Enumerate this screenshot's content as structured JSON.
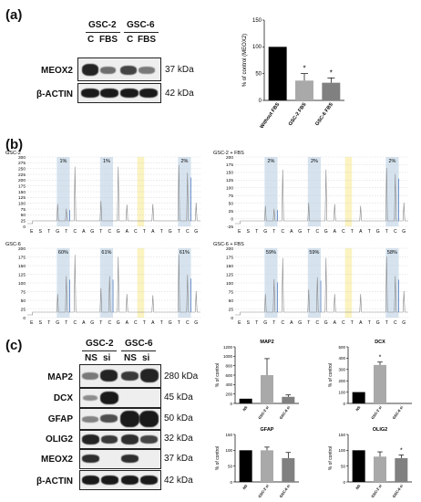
{
  "panel_a": {
    "label": "(a)",
    "groups": [
      "GSC-2",
      "GSC-6"
    ],
    "lanes": [
      "C",
      "FBS",
      "C",
      "FBS"
    ],
    "rows": [
      {
        "name": "MEOX2",
        "kda": "37 kDa"
      },
      {
        "name": "β-ACTIN",
        "kda": "42 kDa"
      }
    ]
  },
  "panel_b": {
    "label": "(b)",
    "sequence": [
      "E",
      "S",
      "T",
      "G",
      "T",
      "C",
      "A",
      "G",
      "T",
      "C",
      "G",
      "A",
      "C",
      "T",
      "A",
      "T",
      "G",
      "T",
      "C",
      "G"
    ],
    "plots": [
      {
        "title": "GSC-2",
        "percents": [
          "1%",
          "1%",
          "2%"
        ],
        "yticks": [
          "300",
          "275",
          "250",
          "225",
          "200",
          "175",
          "150",
          "125",
          "100",
          "75",
          "50",
          "25",
          "0"
        ]
      },
      {
        "title": "GSC-2 + FBS",
        "percents": [
          "2%",
          "2%",
          "2%"
        ],
        "yticks": [
          "200",
          "175",
          "150",
          "125",
          "100",
          "75",
          "50",
          "25",
          "0",
          "-25"
        ]
      },
      {
        "title": "GSC-6",
        "percents": [
          "60%",
          "61%",
          "61%"
        ],
        "yticks": [
          "200",
          "175",
          "150",
          "125",
          "100",
          "75",
          "50",
          "25",
          "0"
        ]
      },
      {
        "title": "GSC-6 + FBS",
        "percents": [
          "59%",
          "59%",
          "58%"
        ],
        "yticks": [
          "200",
          "175",
          "150",
          "125",
          "100",
          "75",
          "50",
          "25",
          "0"
        ]
      }
    ]
  },
  "panel_c": {
    "label": "(c)",
    "groups": [
      "GSC-2",
      "GSC-6"
    ],
    "lanes": [
      "NS",
      "si",
      "NS",
      "si"
    ],
    "rows": [
      {
        "name": "MAP2",
        "kda": "280 kDa"
      },
      {
        "name": "DCX",
        "kda": "45 kDa"
      },
      {
        "name": "GFAP",
        "kda": "50 kDa"
      },
      {
        "name": "OLIG2",
        "kda": "32 kDa"
      },
      {
        "name": "MEOX2",
        "kda": "37 kDa"
      },
      {
        "name": "β-ACTIN",
        "kda": "42 kDa"
      }
    ]
  },
  "colors": {
    "black_bar": "#000000",
    "gray_bar": "#a9a9a9",
    "dark_gray_bar": "#808080",
    "blue_band": "#d6e3ef",
    "yellow_band": "#fbf3c0"
  },
  "chart_data": [
    {
      "type": "bar",
      "ylabel": "% of control (MEOX2)",
      "categories": [
        "Without FBS",
        "GSC-2 FBS",
        "GSC-6 FBS"
      ],
      "values": [
        100,
        37,
        33
      ],
      "errors": [
        0,
        13,
        9
      ],
      "significance": [
        "",
        "*",
        "*"
      ],
      "yticks": [
        "0",
        "50",
        "100",
        "150"
      ],
      "ylim": [
        0,
        150
      ]
    },
    {
      "type": "bar",
      "title": "MAP2",
      "ylabel": "% of control",
      "categories": [
        "NS",
        "GSC-2 si",
        "GSC-6 si"
      ],
      "values": [
        100,
        600,
        140
      ],
      "errors": [
        0,
        350,
        40
      ],
      "significance": [
        "",
        "",
        ""
      ],
      "yticks": [
        "0",
        "200",
        "400",
        "600",
        "800",
        "1000",
        "1200"
      ],
      "ylim": [
        0,
        1200
      ]
    },
    {
      "type": "bar",
      "title": "DCX",
      "ylabel": "% of control",
      "categories": [
        "NS",
        "GSC-2 si",
        "GSC-6 si"
      ],
      "values": [
        100,
        340,
        0
      ],
      "errors": [
        0,
        25,
        0
      ],
      "significance": [
        "",
        "*",
        ""
      ],
      "yticks": [
        "0",
        "100",
        "200",
        "300",
        "400",
        "500"
      ],
      "ylim": [
        0,
        500
      ]
    },
    {
      "type": "bar",
      "title": "GFAP",
      "ylabel": "% of control",
      "categories": [
        "NS",
        "GSC-2 si",
        "GSC-6 si"
      ],
      "values": [
        100,
        100,
        75
      ],
      "errors": [
        0,
        10,
        18
      ],
      "significance": [
        "",
        "",
        ""
      ],
      "yticks": [
        "0",
        "50",
        "100",
        "150"
      ],
      "ylim": [
        0,
        150
      ]
    },
    {
      "type": "bar",
      "title": "OLIG2",
      "ylabel": "% of control",
      "categories": [
        "NS",
        "GSC-2 si",
        "GSC-6 si"
      ],
      "values": [
        100,
        80,
        75
      ],
      "errors": [
        0,
        15,
        10
      ],
      "significance": [
        "",
        "",
        "*"
      ],
      "yticks": [
        "0",
        "50",
        "100",
        "150"
      ],
      "ylim": [
        0,
        150
      ]
    }
  ]
}
